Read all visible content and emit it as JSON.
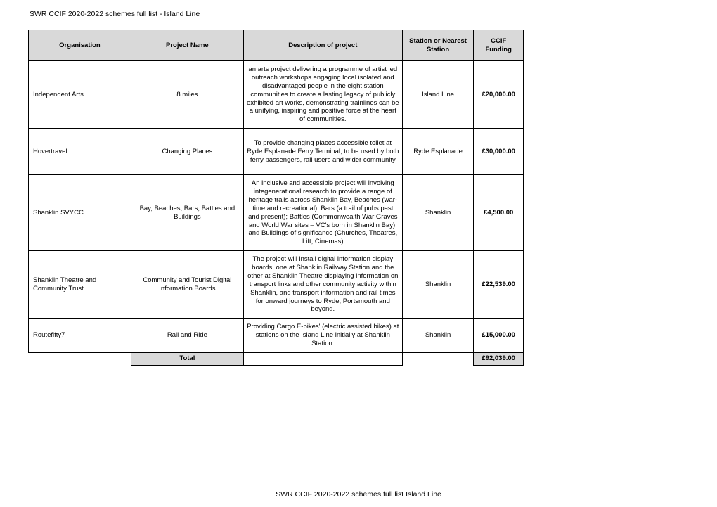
{
  "header": "SWR CCIF 2020-2022 schemes full list - Island Line",
  "footer": "SWR CCIF 2020-2022 schemes full list Island Line",
  "columns": {
    "org": "Organisation",
    "proj": "Project Name",
    "desc": "Description of project",
    "station": "Station or Nearest Station",
    "fund": "CCIF Funding"
  },
  "rows": [
    {
      "org": "Independent Arts",
      "proj": "8 miles",
      "desc": "an arts project delivering a programme of artist led outreach workshops engaging local isolated and disadvantaged people in the eight station communities to create a lasting legacy of publicly exhibited art works, demonstrating trainlines can be a unifying, inspiring and positive force at the heart of communities.",
      "station": "Island Line",
      "fund": "£20,000.00"
    },
    {
      "org": "Hovertravel",
      "proj": "Changing Places",
      "desc": "To provide changing places accessible toilet at Ryde Esplanade Ferry Terminal, to be used by both ferry passengers, rail users and wider community",
      "station": "Ryde Esplanade",
      "fund": "£30,000.00"
    },
    {
      "org": "Shanklin SVYCC",
      "proj": "Bay, Beaches, Bars, Battles and Buildings",
      "desc": "An inclusive and accessible project will involving integenerational research to provide a range of heritage trails across Shanklin Bay,  Beaches (war-time and recreational); Bars (a trail of pubs past and present); Battles (Commonwealth War Graves and World War sites – VC's born in Shanklin Bay); and Buildings of significance (Churches, Theatres, Lift, Cinemas)",
      "station": "Shanklin",
      "fund": "£4,500.00"
    },
    {
      "org": "Shanklin Theatre and Community Trust",
      "proj": "Community and Tourist Digital Information Boards",
      "desc": "The project will install digital information display boards, one at Shanklin Railway Station and the other at Shanklin Theatre displaying information on transport links and other community activity within Shanklin, and transport information and rail times for onward journeys to Ryde, Portsmouth and beyond.",
      "station": "Shanklin",
      "fund": "£22,539.00"
    },
    {
      "org": "Routefifty7",
      "proj": "Rail and Ride",
      "desc": "Providing Cargo E-bikes' (electric assisted bikes) at stations on the Island Line initially at Shanklin Station.",
      "station": "Shanklin",
      "fund": "£15,000.00"
    }
  ],
  "total": {
    "label": "Total",
    "value": "£92,039.00"
  },
  "style": {
    "header_bg": "#d9d9d9",
    "border": "#000000",
    "page_bg": "#ffffff",
    "font": "Arial",
    "base_fontsize": 10,
    "col_widths_pct": [
      15.5,
      17,
      24,
      10.8,
      7.5
    ]
  }
}
